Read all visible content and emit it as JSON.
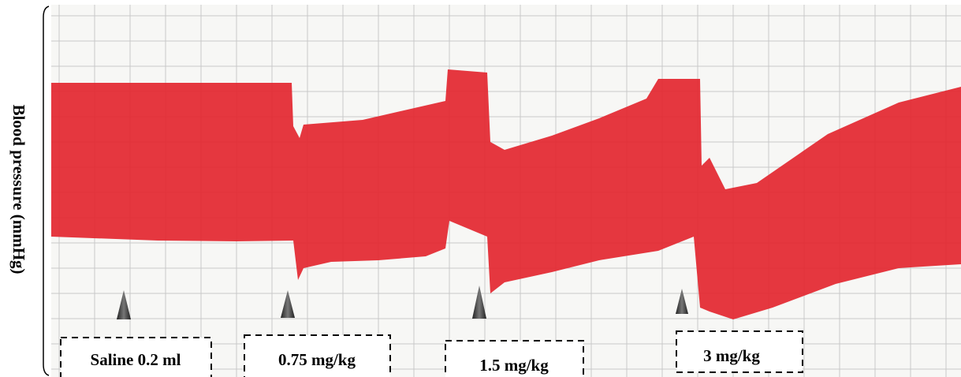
{
  "y_axis_label": "Blood pressure (mmHg)",
  "annotations": [
    {
      "label": "Saline 0.2 ml"
    },
    {
      "label": "0.75 mg/kg"
    },
    {
      "label": "1.5 mg/kg"
    },
    {
      "label": "3 mg/kg"
    }
  ]
}
